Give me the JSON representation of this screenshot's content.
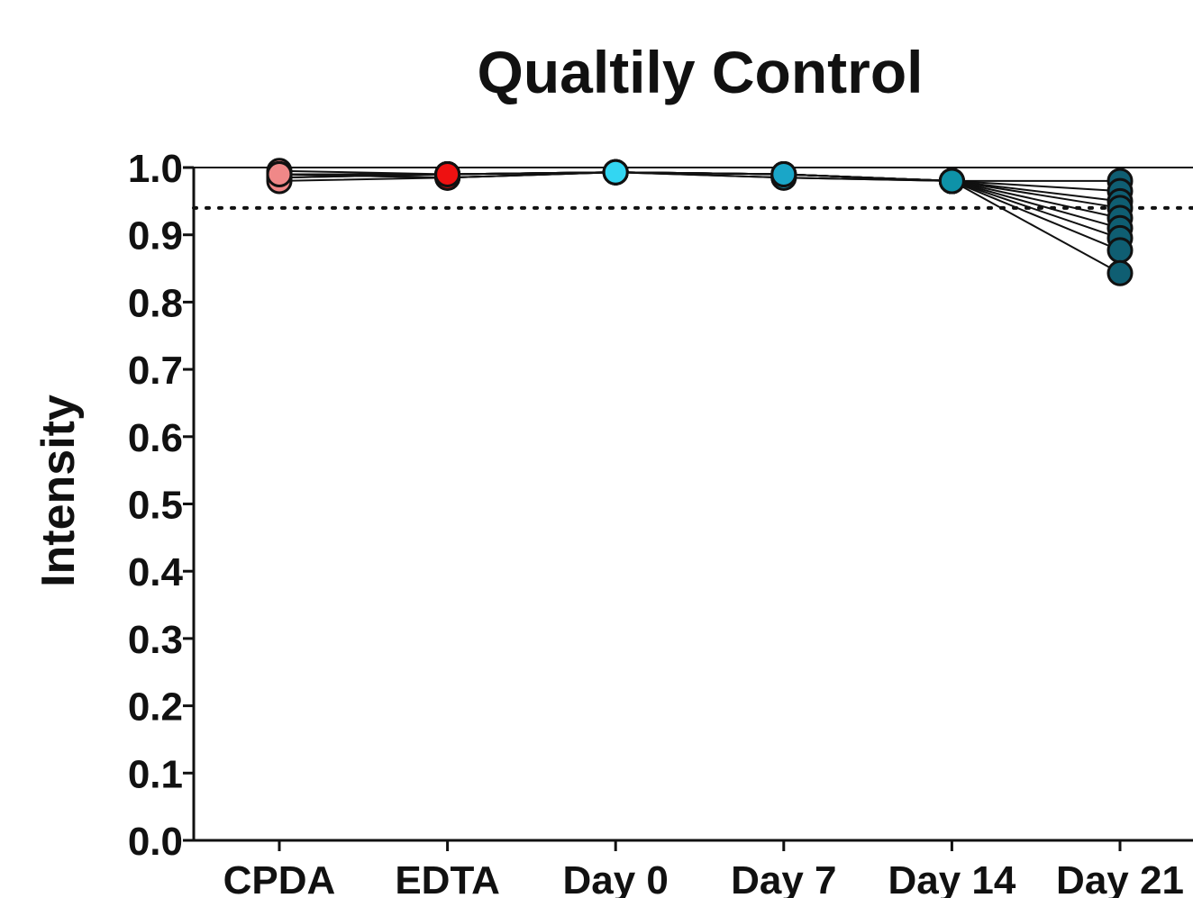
{
  "chart_data": {
    "type": "line",
    "title": "Qualtily Control",
    "xlabel": "",
    "ylabel": "Intensity",
    "categories": [
      "CPDA",
      "EDTA",
      "Day 0",
      "Day 7",
      "Day 14",
      "Day 21"
    ],
    "ylim": [
      0.0,
      1.0
    ],
    "yticks": [
      "0.0",
      "0.1",
      "0.2",
      "0.3",
      "0.4",
      "0.5",
      "0.6",
      "0.7",
      "0.8",
      "0.9",
      "1.0"
    ],
    "reference_line": {
      "y": 0.94,
      "style": "dotted"
    },
    "point_colors": [
      "#f08888",
      "#ee1111",
      "#33d6f2",
      "#1aa6c8",
      "#0e92a8",
      "#0f5e72"
    ],
    "grid": false,
    "series": [
      {
        "values": [
          0.995,
          0.99,
          0.993,
          0.99,
          0.98,
          0.98
        ]
      },
      {
        "values": [
          0.99,
          0.985,
          0.993,
          0.99,
          0.98,
          0.965
        ]
      },
      {
        "values": [
          0.985,
          0.99,
          0.993,
          0.985,
          0.98,
          0.95
        ]
      },
      {
        "values": [
          0.99,
          0.99,
          0.993,
          0.99,
          0.98,
          0.94
        ]
      },
      {
        "values": [
          0.99,
          0.985,
          0.993,
          0.99,
          0.98,
          0.925
        ]
      },
      {
        "values": [
          0.985,
          0.99,
          0.993,
          0.99,
          0.98,
          0.91
        ]
      },
      {
        "values": [
          0.99,
          0.99,
          0.993,
          0.985,
          0.98,
          0.895
        ]
      },
      {
        "values": [
          0.98,
          0.985,
          0.993,
          0.99,
          0.98,
          0.877
        ]
      },
      {
        "values": [
          0.99,
          0.99,
          0.993,
          0.99,
          0.98,
          0.843
        ]
      }
    ]
  }
}
